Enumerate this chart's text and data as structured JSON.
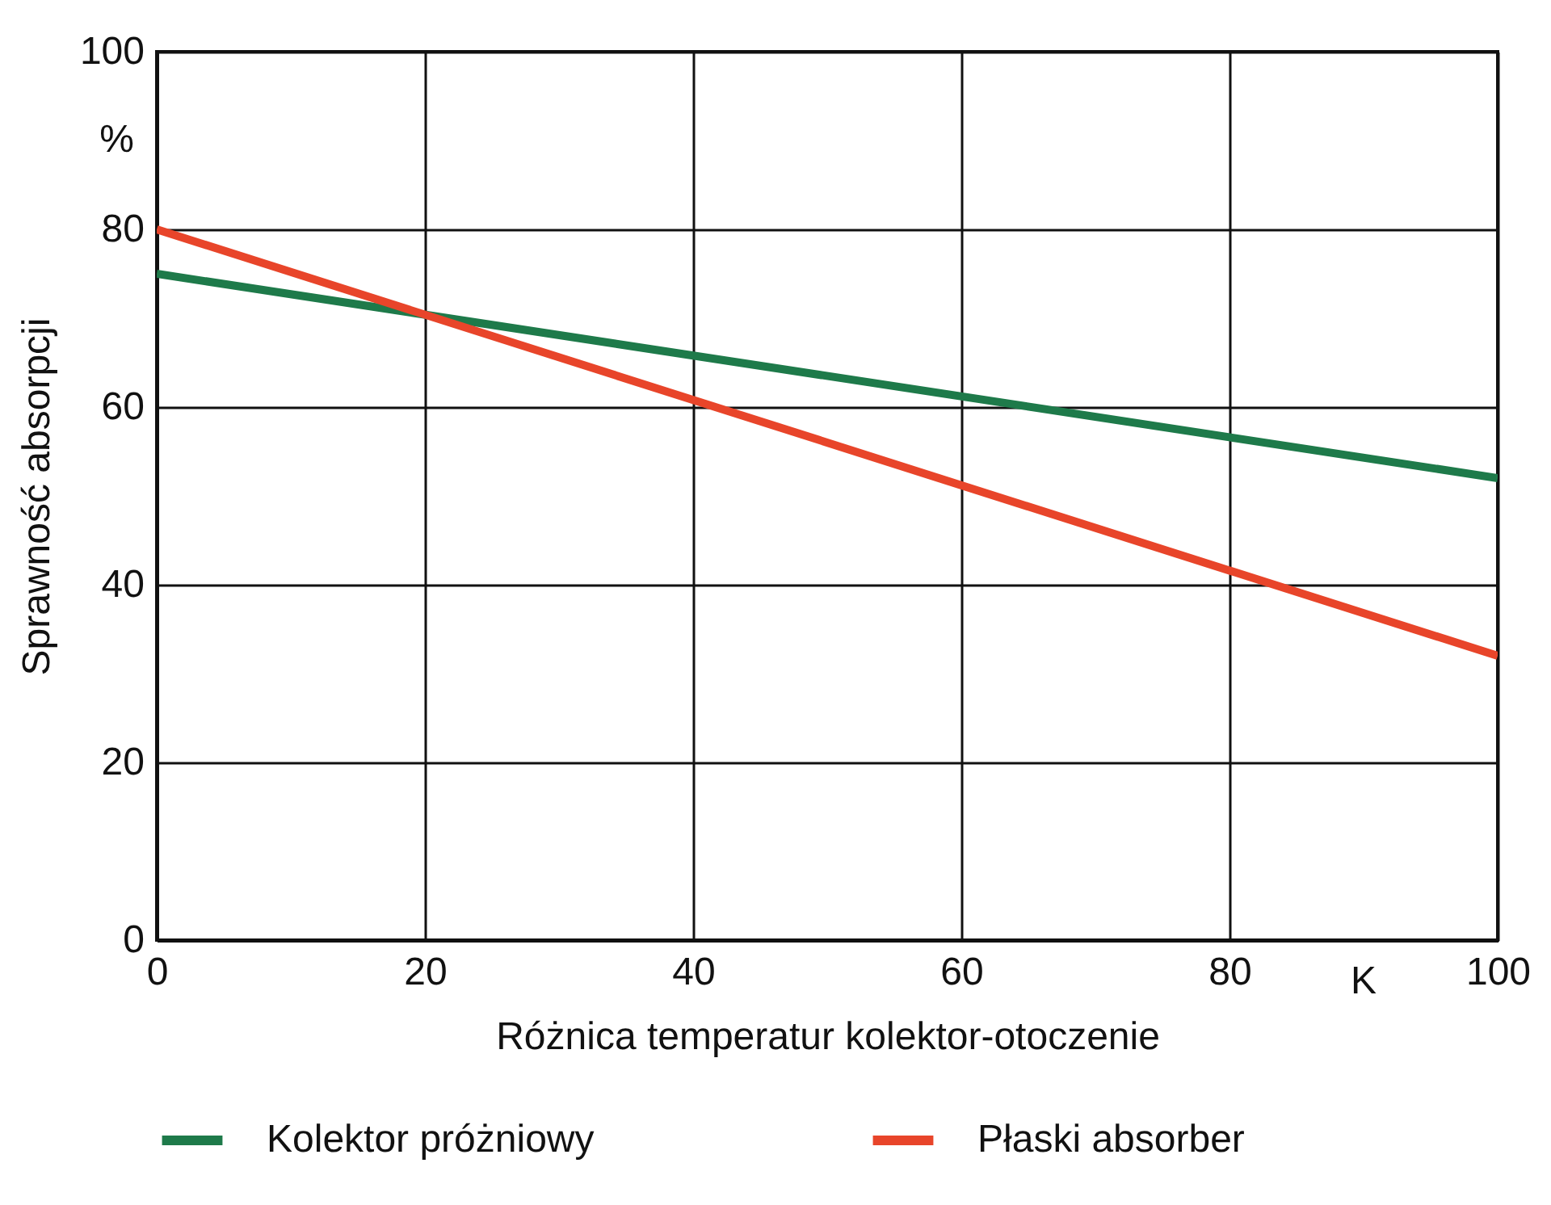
{
  "chart_data": {
    "type": "line",
    "xlabel": "Różnica temperatur kolektor-otoczenie",
    "ylabel": "Sprawność absorpcji",
    "x": [
      0,
      100
    ],
    "series": [
      {
        "name": "Kolektor próżniowy",
        "color": "#1e7a4a",
        "values": [
          75,
          52
        ]
      },
      {
        "name": "Płaski absorber",
        "color": "#e8452a",
        "values": [
          80,
          32
        ]
      }
    ],
    "xlim": [
      0,
      100
    ],
    "ylim": [
      0,
      100
    ],
    "xticks": [
      0,
      20,
      40,
      60,
      80,
      100
    ],
    "yticks": [
      0,
      20,
      40,
      60,
      80,
      100
    ],
    "annotations": [
      "%",
      "K"
    ],
    "grid": true,
    "legend": "bottom",
    "marker": "none",
    "line_style": "solid"
  }
}
